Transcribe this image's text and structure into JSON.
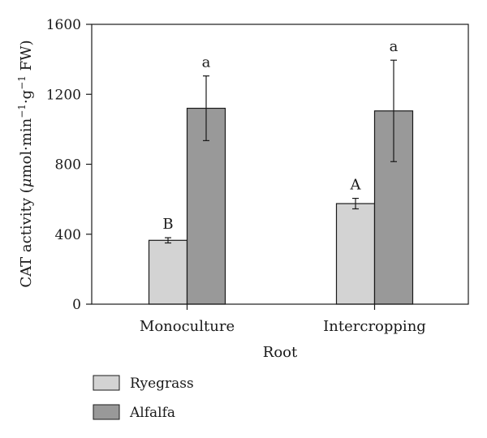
{
  "chart_data": {
    "type": "bar",
    "xlabel": "Root",
    "ylabel": {
      "prefix": "CAT activity (",
      "mu": "μ",
      "unit1": "mol·min",
      "exp1": "−1",
      "unit2": "·g",
      "exp2": "−1",
      "suffix": " FW)"
    },
    "ylim": [
      0,
      1600
    ],
    "yticks": [
      "0",
      "400",
      "800",
      "1200",
      "1600"
    ],
    "categories": [
      "Monoculture",
      "Intercropping"
    ],
    "series": [
      {
        "name": "Ryegrass",
        "color": "#d3d3d3",
        "values": [
          365,
          575
        ],
        "errors": [
          15,
          30
        ],
        "labels": [
          "B",
          "A"
        ]
      },
      {
        "name": "Alfalfa",
        "color": "#999999",
        "values": [
          1120,
          1105
        ],
        "errors": [
          185,
          290
        ],
        "labels": [
          "a",
          "a"
        ]
      }
    ],
    "grid": false,
    "legend_position": "bottom-left"
  }
}
